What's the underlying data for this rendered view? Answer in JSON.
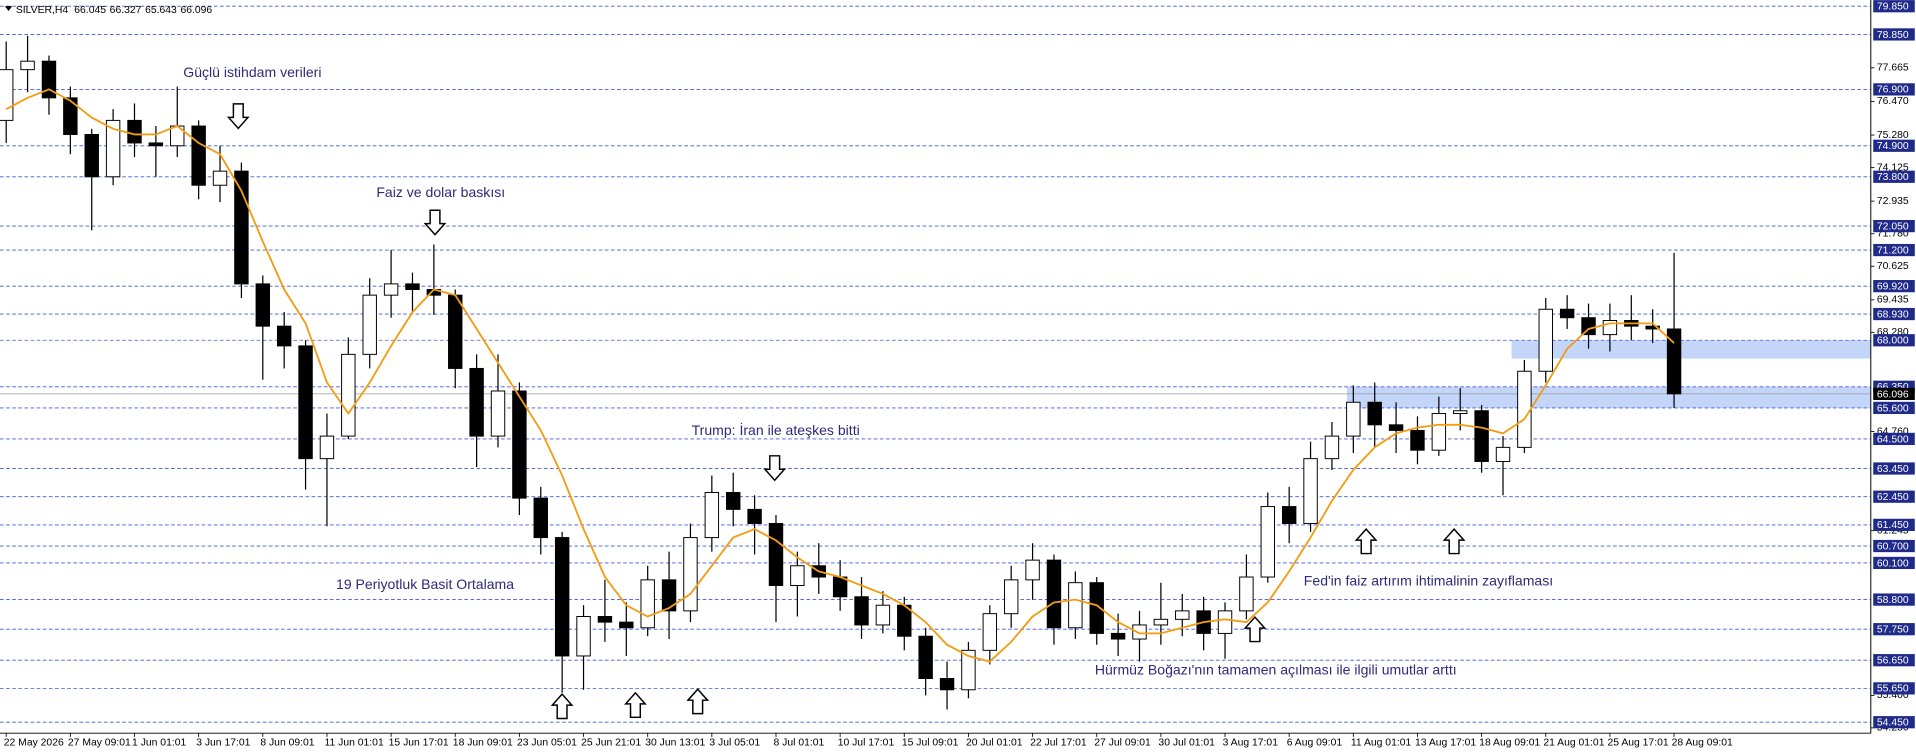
{
  "chart_data": {
    "type": "candlestick",
    "symbol": "SILVER,H4",
    "ohlc": [
      66.045,
      66.327,
      65.643,
      66.096
    ],
    "open": [
      75.8,
      77.6,
      77.9,
      76.6,
      75.3,
      73.8,
      75.8,
      75.0,
      74.9,
      75.6,
      73.5,
      74.0,
      70.0,
      68.5,
      67.8,
      63.8,
      64.6,
      67.5,
      69.6,
      70.0,
      69.8,
      69.6,
      67.0,
      64.6,
      66.2,
      62.4,
      61.0,
      56.8,
      58.2,
      58.0,
      57.8,
      59.5,
      58.4,
      61.0,
      62.6,
      62.0,
      61.5,
      59.3,
      60.0,
      59.6,
      58.9,
      57.9,
      58.6,
      57.5,
      56.0,
      55.6,
      57.0,
      58.3,
      59.5,
      60.2,
      57.8,
      59.4,
      57.6,
      57.4,
      57.9,
      58.1,
      58.4,
      57.6,
      58.4,
      59.6,
      62.1,
      61.5,
      63.8,
      64.6,
      65.8,
      65.0,
      64.8,
      64.1,
      65.4,
      65.5,
      63.7,
      64.2,
      66.9,
      69.1,
      68.8,
      68.2,
      68.7,
      68.5,
      68.4
    ],
    "high": [
      78.6,
      78.8,
      78.1,
      77.0,
      75.5,
      76.2,
      76.4,
      75.6,
      77.0,
      75.8,
      74.9,
      74.3,
      70.3,
      69.0,
      68.0,
      65.4,
      68.1,
      70.2,
      71.2,
      70.4,
      71.4,
      69.8,
      67.5,
      67.5,
      66.5,
      62.8,
      61.2,
      58.6,
      59.5,
      58.7,
      60.0,
      60.5,
      61.5,
      63.2,
      63.3,
      62.5,
      61.8,
      60.5,
      60.8,
      60.2,
      59.6,
      59.1,
      58.9,
      57.8,
      56.6,
      57.3,
      58.6,
      60.0,
      60.8,
      60.4,
      59.8,
      59.6,
      58.3,
      58.4,
      59.4,
      59.0,
      58.9,
      58.7,
      60.4,
      62.6,
      62.8,
      64.4,
      65.1,
      66.4,
      66.5,
      65.8,
      65.3,
      66.0,
      66.3,
      65.7,
      64.6,
      67.3,
      69.5,
      69.6,
      69.3,
      69.3,
      69.6,
      69.1,
      71.1
    ],
    "low": [
      75.0,
      76.8,
      76.0,
      74.6,
      71.9,
      73.5,
      74.5,
      73.8,
      74.5,
      73.0,
      72.9,
      69.5,
      66.6,
      67.0,
      62.7,
      61.4,
      64.5,
      67.0,
      68.8,
      69.0,
      68.9,
      66.3,
      63.5,
      64.2,
      61.8,
      60.4,
      55.5,
      55.6,
      57.3,
      56.8,
      57.5,
      57.4,
      58.0,
      60.5,
      61.4,
      60.4,
      58.0,
      58.2,
      59.0,
      58.4,
      57.4,
      57.6,
      57.0,
      55.4,
      54.9,
      55.3,
      56.5,
      57.8,
      58.8,
      57.2,
      57.4,
      57.2,
      56.8,
      56.6,
      57.2,
      57.5,
      57.0,
      56.7,
      58.1,
      59.4,
      60.8,
      61.2,
      63.4,
      64.0,
      64.2,
      64.0,
      63.6,
      63.9,
      64.8,
      63.3,
      62.5,
      64.0,
      66.5,
      68.4,
      67.7,
      67.6,
      68.0,
      67.9,
      65.6
    ],
    "close": [
      77.6,
      77.9,
      76.6,
      75.3,
      73.8,
      75.8,
      75.0,
      74.9,
      75.6,
      73.5,
      74.0,
      70.0,
      68.5,
      67.8,
      63.8,
      64.6,
      67.5,
      69.6,
      70.0,
      69.8,
      69.6,
      67.0,
      64.6,
      66.2,
      62.4,
      61.0,
      56.8,
      58.2,
      58.0,
      57.8,
      59.5,
      58.4,
      61.0,
      62.6,
      62.0,
      61.5,
      59.3,
      60.0,
      59.6,
      58.9,
      57.9,
      58.6,
      57.5,
      56.0,
      55.6,
      57.0,
      58.3,
      59.5,
      60.2,
      57.8,
      59.4,
      57.6,
      57.4,
      57.9,
      58.1,
      58.4,
      57.6,
      58.4,
      59.6,
      62.1,
      61.5,
      63.8,
      64.6,
      65.8,
      65.0,
      64.8,
      64.1,
      65.4,
      65.5,
      63.7,
      64.2,
      66.9,
      69.1,
      68.8,
      68.2,
      68.7,
      68.5,
      68.4,
      66.1
    ],
    "ma_values": [
      76.2,
      76.6,
      76.9,
      76.5,
      75.9,
      75.5,
      75.3,
      75.3,
      75.6,
      75.0,
      74.6,
      73.3,
      71.5,
      69.8,
      68.6,
      66.5,
      65.4,
      66.5,
      67.8,
      69.0,
      69.8,
      69.6,
      68.4,
      67.2,
      66.0,
      64.8,
      63.2,
      61.3,
      59.6,
      58.6,
      58.2,
      58.5,
      59.0,
      60.0,
      61.0,
      61.3,
      60.9,
      60.3,
      59.8,
      59.6,
      59.3,
      59.0,
      58.6,
      58.0,
      57.2,
      56.8,
      56.6,
      57.3,
      58.2,
      58.7,
      58.8,
      58.6,
      58.0,
      57.6,
      57.6,
      57.8,
      58.0,
      58.1,
      58.0,
      58.7,
      59.8,
      61.0,
      62.3,
      63.4,
      64.2,
      64.7,
      64.9,
      65.0,
      65.0,
      64.9,
      64.7,
      65.2,
      66.4,
      67.7,
      68.4,
      68.6,
      68.6,
      68.6,
      67.9
    ],
    "ma_color": "#f39c12",
    "candle_color": "#000000",
    "xlim": [
      -0.29,
      87.2
    ],
    "ylim": [
      54.06,
      80.07
    ],
    "xticks": [
      {
        "value": 0,
        "label": "22 May 2026"
      },
      {
        "value": 3,
        "label": "27 May 09:01"
      },
      {
        "value": 6,
        "label": "1 Jun 01:01"
      },
      {
        "value": 9,
        "label": "3 Jun 17:01"
      },
      {
        "value": 12,
        "label": "8 Jun 09:01"
      },
      {
        "value": 15,
        "label": "11 Jun 01:01"
      },
      {
        "value": 18,
        "label": "15 Jun 17:01"
      },
      {
        "value": 21,
        "label": "18 Jun 09:01"
      },
      {
        "value": 24,
        "label": "23 Jun 05:01"
      },
      {
        "value": 27,
        "label": "25 Jun 21:01"
      },
      {
        "value": 30,
        "label": "30 Jun 13:01"
      },
      {
        "value": 33,
        "label": "3 Jul 05:01"
      },
      {
        "value": 36,
        "label": "8 Jul 01:01"
      },
      {
        "value": 39,
        "label": "10 Jul 17:01"
      },
      {
        "value": 42,
        "label": "15 Jul 09:01"
      },
      {
        "value": 45,
        "label": "20 Jul 01:01"
      },
      {
        "value": 48,
        "label": "22 Jul 17:01"
      },
      {
        "value": 51,
        "label": "27 Jul 09:01"
      },
      {
        "value": 54,
        "label": "30 Jul 01:01"
      },
      {
        "value": 57,
        "label": "3 Aug 17:01"
      },
      {
        "value": 60,
        "label": "6 Aug 09:01"
      },
      {
        "value": 63,
        "label": "11 Aug 01:01"
      },
      {
        "value": 66,
        "label": "13 Aug 17:01"
      },
      {
        "value": 69,
        "label": "18 Aug 09:01"
      },
      {
        "value": 72,
        "label": "21 Aug 01:01"
      },
      {
        "value": 75,
        "label": "25 Aug 17:01"
      },
      {
        "value": 78,
        "label": "28 Aug 09:01"
      }
    ],
    "yticks": [
      77.665,
      {
        "value": 76.47,
        "label": "76.470"
      },
      {
        "value": 75.28,
        "label": "75.280"
      },
      74.125,
      72.935,
      {
        "value": 71.78,
        "label": "71.780"
      },
      70.625,
      69.435,
      {
        "value": 68.28,
        "label": "68.280"
      },
      {
        "value": 64.76,
        "label": "64.760"
      },
      61.245,
      {
        "value": 55.4,
        "label": "55.400"
      },
      {
        "value": 54.25,
        "label": "54.250"
      }
    ],
    "levels": [
      {
        "value": 79.85,
        "label": "79.850"
      },
      {
        "value": 78.85,
        "label": "78.850"
      },
      {
        "value": 76.9,
        "label": "76.900"
      },
      {
        "value": 74.9,
        "label": "74.900"
      },
      {
        "value": 73.8,
        "label": "73.800"
      },
      {
        "value": 72.05,
        "label": "72.050"
      },
      {
        "value": 71.2,
        "label": "71.200"
      },
      {
        "value": 69.92,
        "label": "69.920"
      },
      {
        "value": 68.93,
        "label": "68.930"
      },
      {
        "value": 68,
        "label": "68.000"
      },
      {
        "value": 66.35,
        "label": "66.350"
      },
      {
        "value": 65.6,
        "label": "65.600"
      },
      {
        "value": 64.5,
        "label": "64.500"
      },
      {
        "value": 63.45,
        "label": "63.450"
      },
      {
        "value": 62.45,
        "label": "62.450"
      },
      {
        "value": 61.45,
        "label": "61.450"
      },
      {
        "value": 60.7,
        "label": "60.700"
      },
      {
        "value": 60.1,
        "label": "60.100"
      },
      {
        "value": 58.8,
        "label": "58.800"
      },
      {
        "value": 57.75,
        "label": "57.750"
      },
      {
        "value": 56.65,
        "label": "56.650"
      },
      {
        "value": 55.65,
        "label": "55.650"
      },
      {
        "value": 54.45,
        "label": "54.450"
      }
    ],
    "level_color": "#3b5bdb",
    "bid": {
      "value": 66.096,
      "label": "66.096"
    },
    "zones": [
      {
        "low": 67.35,
        "high": 68.0,
        "start": 70.4
      },
      {
        "low": 65.6,
        "high": 66.35,
        "start": 62.7
      }
    ],
    "zone_color": "#bcd0f7",
    "annotations": [
      "Güçlü istihdam verileri",
      "Faiz ve dolar baskısı",
      "Trump: İran ile ateşkes bitti",
      "19 Periyotluk Basit Ortalama",
      "Fed'in faiz artırım ihtimalinin zayıflaması",
      "Hürmüz Boğazı'nın tamamen açılması ile ilgili umutlar arttı"
    ]
  }
}
